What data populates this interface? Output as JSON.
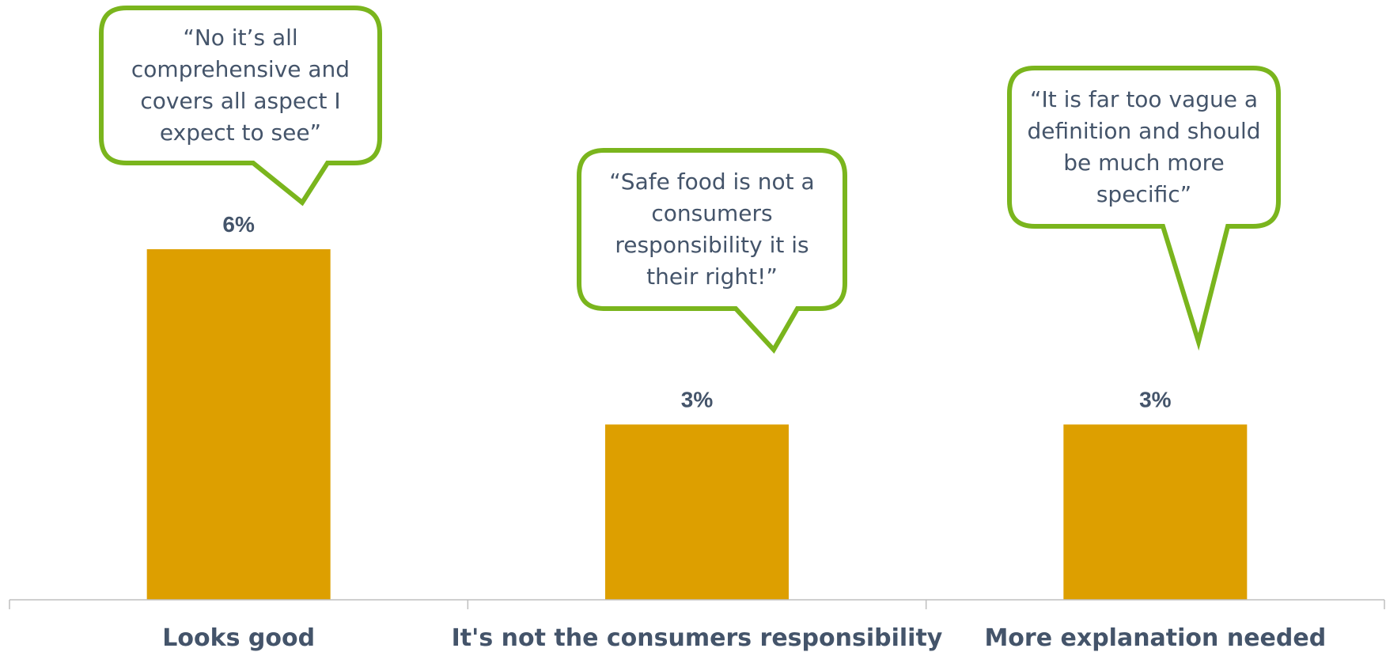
{
  "chart_data": {
    "type": "bar",
    "categories": [
      "Looks good",
      "It's not the consumers responsibility",
      "More explanation needed"
    ],
    "values": [
      6,
      3,
      3
    ],
    "value_labels": [
      "6%",
      "3%",
      "3%"
    ],
    "ylim": [
      0,
      9.75
    ],
    "grid": false,
    "legend": "none",
    "title": "",
    "xlabel": "",
    "ylabel": ""
  },
  "callouts": [
    "“No it’s all comprehensive and covers all aspect I expect to see”",
    "“Safe food is not a consumers responsibility it is their right!”",
    "“It is far too vague a definition and should be much more specific”"
  ],
  "colors": {
    "bar": "#dd9f00",
    "callout_border": "#7ab51d",
    "text": "#44546a",
    "axis": "#bfbfbf"
  }
}
